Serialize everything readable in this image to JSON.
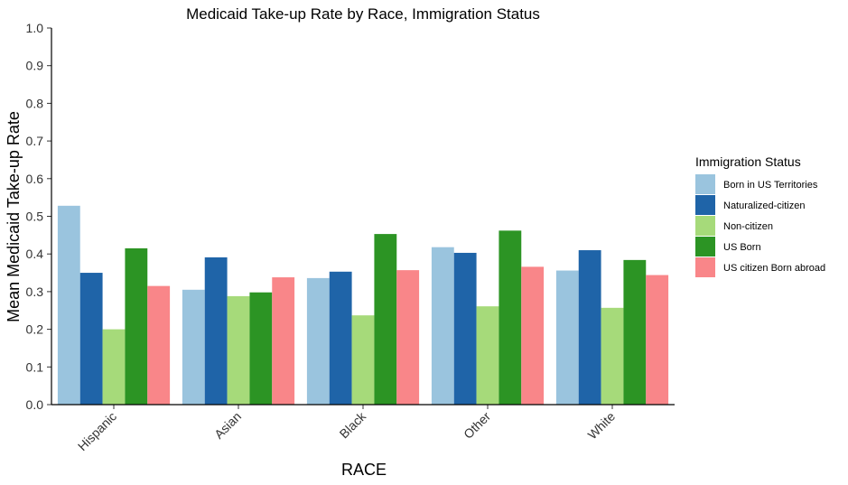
{
  "chart_data": {
    "type": "bar",
    "title": "Medicaid Take-up Rate by Race, Immigration Status",
    "xlabel": "RACE",
    "ylabel": "Mean Medicaid Take-up Rate",
    "ylim": [
      0,
      1
    ],
    "yticks": [
      "0.0",
      "0.1",
      "0.2",
      "0.3",
      "0.4",
      "0.5",
      "0.6",
      "0.7",
      "0.8",
      "0.9",
      "1.0"
    ],
    "categories": [
      "Hispanic",
      "Asian",
      "Black",
      "Other",
      "White"
    ],
    "legend_title": "Immigration Status",
    "legend_position": "right",
    "grid": false,
    "series": [
      {
        "name": "Born in US Territories",
        "color": "#9ac4de",
        "values": [
          0.528,
          0.305,
          0.336,
          0.418,
          0.356
        ]
      },
      {
        "name": "Naturalized-citizen",
        "color": "#1f64a8",
        "values": [
          0.35,
          0.391,
          0.353,
          0.403,
          0.41
        ]
      },
      {
        "name": "Non-citizen",
        "color": "#a6da7a",
        "values": [
          0.2,
          0.288,
          0.237,
          0.261,
          0.257
        ]
      },
      {
        "name": "US Born",
        "color": "#2c9424",
        "values": [
          0.415,
          0.298,
          0.453,
          0.462,
          0.384
        ]
      },
      {
        "name": "US citizen Born abroad",
        "color": "#f98689",
        "values": [
          0.315,
          0.338,
          0.357,
          0.366,
          0.344
        ]
      }
    ]
  }
}
